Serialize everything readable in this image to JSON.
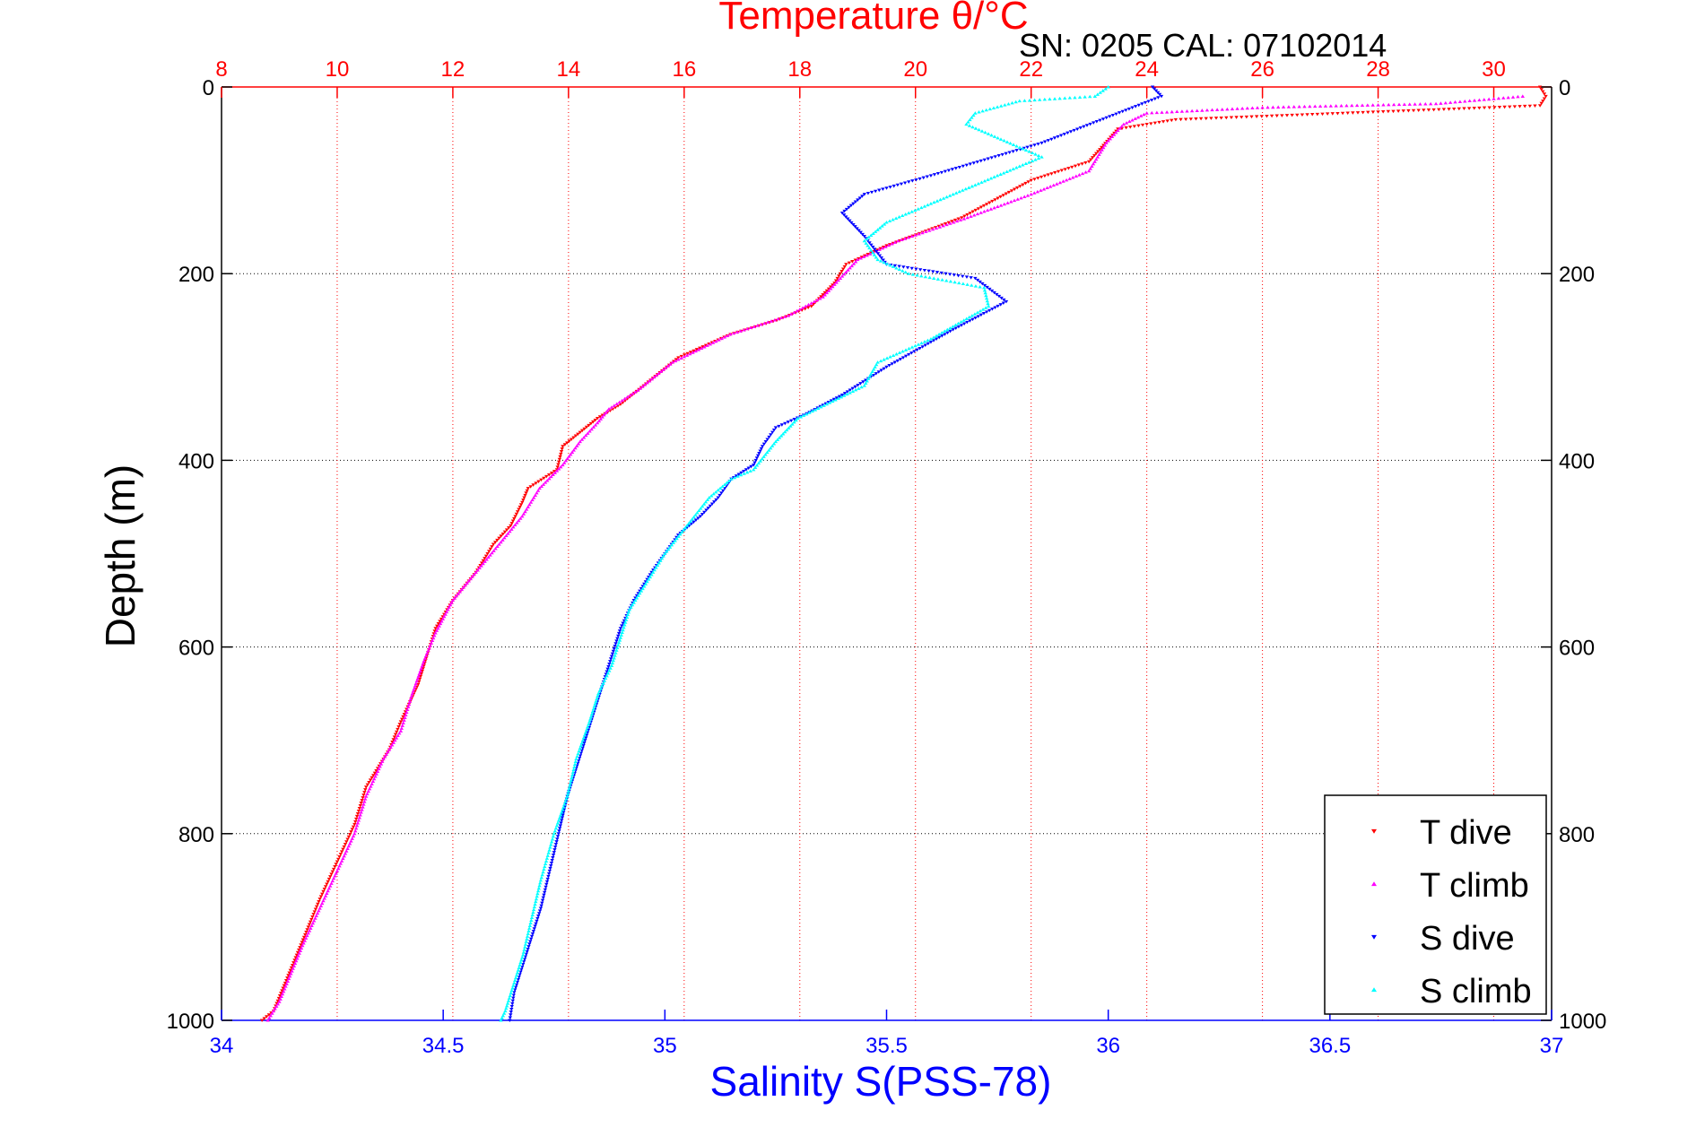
{
  "chart_data": {
    "type": "scatter",
    "title": "Temperature θ/°C",
    "subtitle": "SN: 0205  CAL: 07102014",
    "ylabel": "Depth (m)",
    "xlabel": "Salinity S(PSS-78)",
    "ylim": [
      0,
      1000
    ],
    "y_reversed": true,
    "y_ticks": [
      0,
      200,
      400,
      600,
      800,
      1000
    ],
    "x_bottom": {
      "label": "Salinity S(PSS-78)",
      "range": [
        34,
        37
      ],
      "ticks": [
        34,
        34.5,
        35,
        35.5,
        36,
        36.5,
        37
      ],
      "tick_labels": [
        "34",
        "34.5",
        "35",
        "35.5",
        "36",
        "36.5",
        "37"
      ],
      "color": "#0000ff"
    },
    "x_top": {
      "label": "Temperature θ/°C",
      "range": [
        8,
        31
      ],
      "ticks": [
        8,
        10,
        12,
        14,
        16,
        18,
        20,
        22,
        24,
        26,
        28,
        30
      ],
      "tick_labels": [
        "8",
        "10",
        "12",
        "14",
        "16",
        "18",
        "20",
        "22",
        "24",
        "26",
        "28",
        "30"
      ],
      "color": "#ff0000"
    },
    "grid": true,
    "legend_position": "bottom-right",
    "series": [
      {
        "name": "T dive",
        "axis": "top",
        "color": "#ff0000",
        "marker": "triangle-down",
        "points": [
          [
            30.8,
            0
          ],
          [
            30.9,
            10
          ],
          [
            30.8,
            20
          ],
          [
            24.5,
            35
          ],
          [
            23.5,
            45
          ],
          [
            23.0,
            80
          ],
          [
            22.0,
            100
          ],
          [
            20.8,
            140
          ],
          [
            19.5,
            170
          ],
          [
            18.8,
            190
          ],
          [
            18.6,
            210
          ],
          [
            18.2,
            235
          ],
          [
            17.6,
            250
          ],
          [
            16.8,
            265
          ],
          [
            15.9,
            290
          ],
          [
            15.3,
            320
          ],
          [
            14.9,
            340
          ],
          [
            14.5,
            355
          ],
          [
            14.2,
            370
          ],
          [
            13.9,
            385
          ],
          [
            13.8,
            410
          ],
          [
            13.3,
            430
          ],
          [
            13.2,
            445
          ],
          [
            13.0,
            470
          ],
          [
            12.7,
            490
          ],
          [
            12.4,
            520
          ],
          [
            12.0,
            550
          ],
          [
            11.7,
            580
          ],
          [
            11.6,
            600
          ],
          [
            11.4,
            640
          ],
          [
            11.1,
            680
          ],
          [
            10.9,
            710
          ],
          [
            10.5,
            750
          ],
          [
            10.3,
            790
          ],
          [
            10.0,
            830
          ],
          [
            9.7,
            870
          ],
          [
            9.5,
            900
          ],
          [
            9.3,
            930
          ],
          [
            9.1,
            960
          ],
          [
            8.9,
            990
          ],
          [
            8.7,
            1000
          ]
        ]
      },
      {
        "name": "T climb",
        "axis": "top",
        "color": "#ff00ff",
        "marker": "triangle-up",
        "points": [
          [
            30.5,
            10
          ],
          [
            29.0,
            18
          ],
          [
            26.0,
            22
          ],
          [
            24.0,
            28
          ],
          [
            23.6,
            40
          ],
          [
            23.3,
            60
          ],
          [
            23.0,
            90
          ],
          [
            22.0,
            115
          ],
          [
            20.9,
            140
          ],
          [
            19.7,
            165
          ],
          [
            19.0,
            185
          ],
          [
            18.7,
            205
          ],
          [
            18.4,
            225
          ],
          [
            17.8,
            245
          ],
          [
            16.8,
            265
          ],
          [
            15.8,
            295
          ],
          [
            15.2,
            325
          ],
          [
            14.7,
            345
          ],
          [
            14.5,
            360
          ],
          [
            14.2,
            380
          ],
          [
            13.9,
            405
          ],
          [
            13.5,
            430
          ],
          [
            13.2,
            460
          ],
          [
            12.8,
            490
          ],
          [
            12.4,
            520
          ],
          [
            12.0,
            550
          ],
          [
            11.7,
            585
          ],
          [
            11.5,
            615
          ],
          [
            11.3,
            650
          ],
          [
            11.1,
            690
          ],
          [
            10.8,
            720
          ],
          [
            10.5,
            760
          ],
          [
            10.3,
            800
          ],
          [
            10.0,
            840
          ],
          [
            9.7,
            880
          ],
          [
            9.4,
            920
          ],
          [
            9.2,
            950
          ],
          [
            9.0,
            980
          ],
          [
            8.8,
            1000
          ]
        ]
      },
      {
        "name": "S dive",
        "axis": "bottom",
        "color": "#0000ff",
        "marker": "triangle-down",
        "points": [
          [
            36.1,
            0
          ],
          [
            36.12,
            10
          ],
          [
            35.85,
            60
          ],
          [
            35.6,
            95
          ],
          [
            35.45,
            115
          ],
          [
            35.4,
            135
          ],
          [
            35.45,
            160
          ],
          [
            35.5,
            190
          ],
          [
            35.7,
            205
          ],
          [
            35.77,
            230
          ],
          [
            35.65,
            260
          ],
          [
            35.5,
            300
          ],
          [
            35.4,
            330
          ],
          [
            35.32,
            350
          ],
          [
            35.25,
            365
          ],
          [
            35.22,
            385
          ],
          [
            35.2,
            405
          ],
          [
            35.15,
            420
          ],
          [
            35.12,
            440
          ],
          [
            35.08,
            460
          ],
          [
            35.03,
            480
          ],
          [
            35.0,
            500
          ],
          [
            34.97,
            520
          ],
          [
            34.93,
            550
          ],
          [
            34.9,
            580
          ],
          [
            34.88,
            610
          ],
          [
            34.86,
            640
          ],
          [
            34.84,
            670
          ],
          [
            34.82,
            700
          ],
          [
            34.8,
            730
          ],
          [
            34.78,
            760
          ],
          [
            34.76,
            800
          ],
          [
            34.74,
            840
          ],
          [
            34.72,
            880
          ],
          [
            34.7,
            910
          ],
          [
            34.68,
            940
          ],
          [
            34.66,
            970
          ],
          [
            34.65,
            1000
          ]
        ]
      },
      {
        "name": "S climb",
        "axis": "bottom",
        "color": "#00ffff",
        "marker": "triangle-up",
        "points": [
          [
            36.0,
            0
          ],
          [
            35.97,
            10
          ],
          [
            35.8,
            15
          ],
          [
            35.7,
            28
          ],
          [
            35.68,
            40
          ],
          [
            35.85,
            75
          ],
          [
            35.7,
            105
          ],
          [
            35.6,
            125
          ],
          [
            35.5,
            145
          ],
          [
            35.45,
            165
          ],
          [
            35.48,
            185
          ],
          [
            35.55,
            200
          ],
          [
            35.72,
            215
          ],
          [
            35.73,
            235
          ],
          [
            35.6,
            270
          ],
          [
            35.48,
            295
          ],
          [
            35.45,
            320
          ],
          [
            35.3,
            355
          ],
          [
            35.25,
            380
          ],
          [
            35.2,
            410
          ],
          [
            35.15,
            420
          ],
          [
            35.1,
            440
          ],
          [
            35.05,
            470
          ],
          [
            35.0,
            500
          ],
          [
            34.96,
            530
          ],
          [
            34.92,
            560
          ],
          [
            34.9,
            590
          ],
          [
            34.88,
            620
          ],
          [
            34.85,
            650
          ],
          [
            34.83,
            680
          ],
          [
            34.8,
            720
          ],
          [
            34.78,
            760
          ],
          [
            34.75,
            800
          ],
          [
            34.72,
            850
          ],
          [
            34.7,
            890
          ],
          [
            34.68,
            930
          ],
          [
            34.66,
            960
          ],
          [
            34.64,
            990
          ],
          [
            34.63,
            1000
          ]
        ]
      }
    ]
  }
}
